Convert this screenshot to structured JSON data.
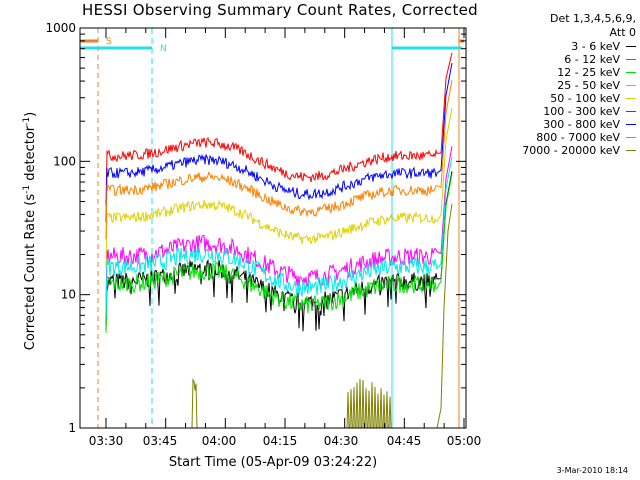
{
  "chart_data": {
    "type": "line",
    "title": "HESSI Observing Summary Count Rates, Corrected",
    "xlabel": "Start Time (05-Apr-09 03:24:22)",
    "ylabel_main": "Corrected Count Rate (s",
    "ylabel_exp1": "-1",
    "ylabel_mid": " detector",
    "ylabel_exp2": "-1",
    "ylabel_end": ")",
    "yscale": "log",
    "ylim": [
      1,
      1000
    ],
    "xlim_minutes": [
      3.4,
      5.0
    ],
    "x_ticks": [
      "03:30",
      "03:45",
      "04:00",
      "04:15",
      "04:30",
      "04:45",
      "05:00"
    ],
    "y_ticks": [
      "1",
      "10",
      "100",
      "1000"
    ],
    "legend_header": [
      "Det 1,3,4,5,6,9,",
      "Att 0"
    ],
    "legend_placement": "right",
    "timestamp": "3-Mar-2010 18:14",
    "flags": {
      "saa": {
        "label": "S",
        "color": "#f08020"
      },
      "night": {
        "label": "N",
        "color": "#20e0f0"
      }
    },
    "series": [
      {
        "name": "3 - 6 keV",
        "color": "#000000",
        "level": 12.0,
        "shape": "low"
      },
      {
        "name": "6 - 12 keV",
        "color": "#ff00ff",
        "level": 18.5,
        "shape": "low"
      },
      {
        "name": "12 - 25 keV",
        "color": "#00e000",
        "level": 11.5,
        "shape": "low"
      },
      {
        "name": "25 - 50 keV",
        "color": "#00e8e8",
        "level": 15.5,
        "shape": "low"
      },
      {
        "name": "50 - 100 keV",
        "color": "#e0d000",
        "level": 36.0,
        "shape": "high"
      },
      {
        "name": "100 - 300 keV",
        "color": "#ff0000",
        "level": 105.0,
        "shape": "high"
      },
      {
        "name": "300 - 800 keV",
        "color": "#0000ff",
        "level": 78.0,
        "shape": "high"
      },
      {
        "name": "800 - 7000 keV",
        "color": "#ff8000",
        "level": 58.0,
        "shape": "high"
      },
      {
        "name": "7000 - 20000 keV",
        "color": "#808000",
        "level": 1.0,
        "shape": "flare"
      }
    ]
  }
}
